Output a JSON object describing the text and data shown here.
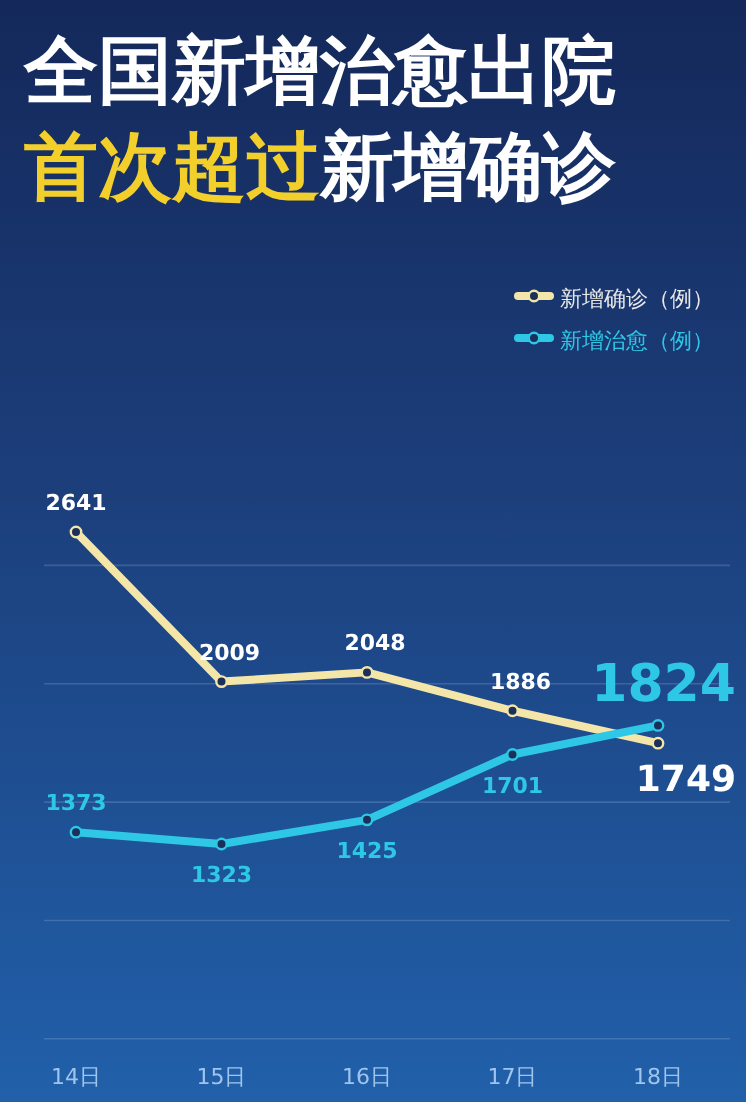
{
  "chart_data": {
    "type": "line",
    "title": "全国新增治愈出院",
    "subtitle": "首次超过新增确诊",
    "categories": [
      "14日",
      "15日",
      "16日",
      "17日",
      "18日"
    ],
    "series": [
      {
        "name": "新增确诊（例）",
        "color": "#f3e6a8",
        "values": [
          2641,
          2009,
          2048,
          1886,
          1749
        ]
      },
      {
        "name": "新增治愈（例）",
        "color": "#2ec8e6",
        "values": [
          1373,
          1323,
          1425,
          1701,
          1824
        ]
      }
    ],
    "grid": "y",
    "legend": "top right",
    "marker": "circle",
    "data_labels": true
  }
}
